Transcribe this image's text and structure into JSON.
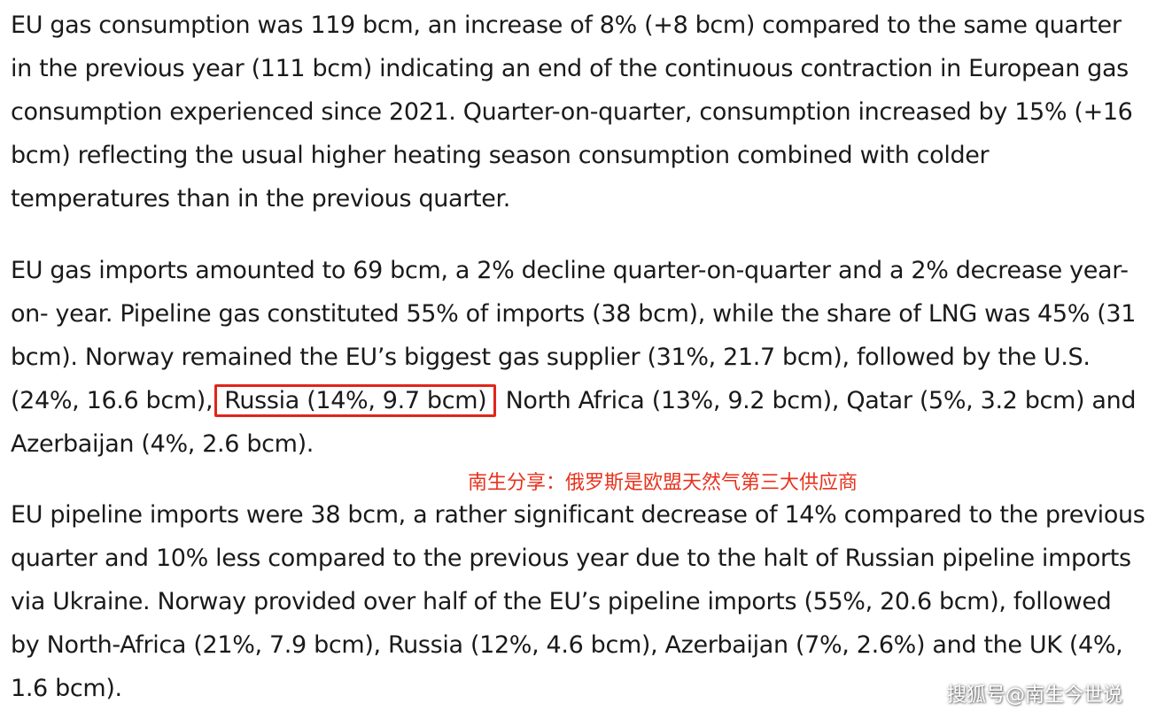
{
  "paragraphs": {
    "consumption": "EU gas consumption was 119 bcm, an increase of 8% (+8 bcm) compared to the same quarter in the previous year (111 bcm) indicating an end of the continuous contraction in European gas consumption experienced since 2021. Quarter-on-quarter, consumption increased by 15% (+16 bcm) reflecting the usual higher heating season consumption combined with colder temperatures than in the previous quarter.",
    "imports_before": "EU gas imports amounted to 69 bcm, a 2% decline quarter-on-quarter and a 2% decrease year-on- year. Pipeline gas constituted 55% of imports (38 bcm), while the share of LNG was 45% (31 bcm). Norway remained the EU’s biggest gas supplier (31%, 21.7 bcm), followed by the U.S. (24%, 16.6 bcm),",
    "imports_highlight": "Russia (14%, 9.7 bcm)",
    "imports_after": "North Africa (13%, 9.2 bcm), Qatar (5%, 3.2 bcm) and Azerbaijan (4%, 2.6 bcm).",
    "pipeline": "EU pipeline imports were 38 bcm, a rather significant decrease of 14% compared to the previous quarter and 10% less compared to the previous year due to the halt of Russian pipeline imports via Ukraine. Norway provided over half of the EU’s pipeline imports (55%, 20.6 bcm), followed by North-Africa (21%, 7.9 bcm), Russia (12%, 4.6 bcm), Azerbaijan (7%, 2.6%) and the UK (4%, 1.6 bcm)."
  },
  "annotation": {
    "note": "南生分享：俄罗斯是欧盟天然气第三大供应商",
    "color": "#e8321e",
    "box_color": "#e0251b"
  },
  "watermark": "搜狐号@南生今世说"
}
